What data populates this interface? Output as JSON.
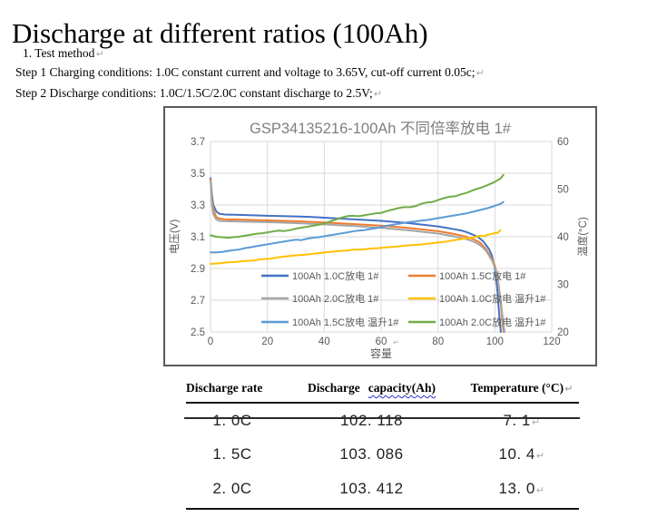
{
  "page": {
    "title": "Discharge at different ratios (100Ah)",
    "intro": "1. Test method",
    "step1": "Step 1 Charging conditions: 1.0C constant current and voltage to 3.65V, cut-off current 0.05c;",
    "step2": "Step 2 Discharge conditions: 1.0C/1.5C/2.0C constant discharge to 2.5V;",
    "paragraph_mark": "↵"
  },
  "chart_data": {
    "type": "line",
    "title": "GSP34135216-100Ah 不同倍率放电 1#",
    "xlabel": "容量",
    "ylabel_left": "电压(V)",
    "ylabel_right": "温度(°C)",
    "x_axis": {
      "min": 0,
      "max": 120,
      "ticks": [
        0,
        20,
        40,
        60,
        80,
        100,
        120
      ]
    },
    "y_left": {
      "min": 2.5,
      "max": 3.7,
      "ticks": [
        3.7,
        3.5,
        3.3,
        3.1,
        2.9,
        2.7,
        2.5
      ]
    },
    "y_right": {
      "min": 20,
      "max": 60,
      "ticks": [
        60,
        50,
        40,
        30,
        20
      ]
    },
    "grid": true,
    "legend_position": "inside-bottom-two-columns",
    "grid_color": "#d9d9d9",
    "title_color": "#7f7f7f",
    "tick_color": "#595959",
    "series": [
      {
        "name": "100Ah 1.0C放电 1#",
        "color": "#4472C4",
        "axis": "left",
        "points": [
          [
            0,
            3.47
          ],
          [
            0.5,
            3.36
          ],
          [
            1,
            3.3
          ],
          [
            2,
            3.26
          ],
          [
            3,
            3.245
          ],
          [
            5,
            3.24
          ],
          [
            10,
            3.238
          ],
          [
            15,
            3.235
          ],
          [
            20,
            3.232
          ],
          [
            25,
            3.23
          ],
          [
            30,
            3.228
          ],
          [
            35,
            3.225
          ],
          [
            40,
            3.22
          ],
          [
            45,
            3.215
          ],
          [
            50,
            3.21
          ],
          [
            55,
            3.205
          ],
          [
            60,
            3.2
          ],
          [
            65,
            3.193
          ],
          [
            70,
            3.185
          ],
          [
            75,
            3.175
          ],
          [
            80,
            3.165
          ],
          [
            85,
            3.15
          ],
          [
            88,
            3.14
          ],
          [
            90,
            3.13
          ],
          [
            92,
            3.115
          ],
          [
            94,
            3.1
          ],
          [
            96,
            3.07
          ],
          [
            98,
            3.02
          ],
          [
            99,
            2.98
          ],
          [
            100,
            2.9
          ],
          [
            100.8,
            2.78
          ],
          [
            101.5,
            2.62
          ],
          [
            102.1,
            2.5
          ]
        ]
      },
      {
        "name": "100Ah 1.5C放电 1#",
        "color": "#ED7D31",
        "axis": "left",
        "points": [
          [
            0,
            3.46
          ],
          [
            0.5,
            3.33
          ],
          [
            1,
            3.27
          ],
          [
            2,
            3.225
          ],
          [
            3,
            3.215
          ],
          [
            5,
            3.21
          ],
          [
            10,
            3.208
          ],
          [
            20,
            3.203
          ],
          [
            30,
            3.198
          ],
          [
            40,
            3.19
          ],
          [
            50,
            3.18
          ],
          [
            60,
            3.17
          ],
          [
            70,
            3.155
          ],
          [
            80,
            3.135
          ],
          [
            85,
            3.12
          ],
          [
            90,
            3.1
          ],
          [
            93,
            3.08
          ],
          [
            95,
            3.06
          ],
          [
            97,
            3.02
          ],
          [
            99,
            2.96
          ],
          [
            100,
            2.92
          ],
          [
            101,
            2.84
          ],
          [
            102,
            2.7
          ],
          [
            102.7,
            2.55
          ],
          [
            103.1,
            2.5
          ]
        ]
      },
      {
        "name": "100Ah 2.0C放电 1#",
        "color": "#A5A5A5",
        "axis": "left",
        "points": [
          [
            0,
            3.45
          ],
          [
            0.5,
            3.3
          ],
          [
            1,
            3.24
          ],
          [
            2,
            3.21
          ],
          [
            3,
            3.2
          ],
          [
            5,
            3.198
          ],
          [
            10,
            3.196
          ],
          [
            20,
            3.192
          ],
          [
            30,
            3.186
          ],
          [
            40,
            3.178
          ],
          [
            50,
            3.168
          ],
          [
            60,
            3.156
          ],
          [
            70,
            3.14
          ],
          [
            80,
            3.12
          ],
          [
            85,
            3.105
          ],
          [
            90,
            3.085
          ],
          [
            93,
            3.065
          ],
          [
            95,
            3.045
          ],
          [
            97,
            3.01
          ],
          [
            99,
            2.95
          ],
          [
            100,
            2.91
          ],
          [
            101,
            2.83
          ],
          [
            102,
            2.71
          ],
          [
            103,
            2.55
          ],
          [
            103.4,
            2.5
          ]
        ]
      },
      {
        "name": "100Ah 1.0C放电 温升1#",
        "color": "#FFC000",
        "axis": "right",
        "points": [
          [
            0,
            34.3
          ],
          [
            3,
            34.4
          ],
          [
            6,
            34.6
          ],
          [
            9,
            34.7
          ],
          [
            12,
            34.9
          ],
          [
            15,
            35.0
          ],
          [
            18,
            35.3
          ],
          [
            21,
            35.4
          ],
          [
            24,
            35.7
          ],
          [
            27,
            35.9
          ],
          [
            30,
            36.1
          ],
          [
            33,
            36.2
          ],
          [
            36,
            36.4
          ],
          [
            39,
            36.6
          ],
          [
            42,
            36.8
          ],
          [
            45,
            37.0
          ],
          [
            48,
            37.1
          ],
          [
            50,
            37.3
          ],
          [
            53,
            37.3
          ],
          [
            56,
            37.5
          ],
          [
            59,
            37.6
          ],
          [
            62,
            37.8
          ],
          [
            65,
            37.9
          ],
          [
            68,
            38.1
          ],
          [
            70,
            38.2
          ],
          [
            73,
            38.3
          ],
          [
            76,
            38.5
          ],
          [
            79,
            38.7
          ],
          [
            82,
            38.9
          ],
          [
            85,
            39.2
          ],
          [
            88,
            39.5
          ],
          [
            90,
            39.7
          ],
          [
            92,
            39.8
          ],
          [
            94,
            40.1
          ],
          [
            95,
            40.2
          ],
          [
            96,
            40.1
          ],
          [
            97,
            40.3
          ],
          [
            98,
            40.5
          ],
          [
            99,
            40.6
          ],
          [
            100,
            40.8
          ],
          [
            101,
            40.8
          ],
          [
            101.5,
            41.1
          ],
          [
            102,
            41.4
          ]
        ]
      },
      {
        "name": "100Ah 1.5C放电 温升1#",
        "color": "#5B9BD5",
        "axis": "right",
        "points": [
          [
            0,
            36.7
          ],
          [
            2,
            36.7
          ],
          [
            4,
            36.8
          ],
          [
            6,
            37.0
          ],
          [
            8,
            37.2
          ],
          [
            10,
            37.3
          ],
          [
            12,
            37.6
          ],
          [
            14,
            37.8
          ],
          [
            16,
            38.0
          ],
          [
            18,
            38.2
          ],
          [
            20,
            38.4
          ],
          [
            22,
            38.6
          ],
          [
            24,
            38.8
          ],
          [
            26,
            39.0
          ],
          [
            28,
            39.2
          ],
          [
            30,
            39.4
          ],
          [
            32,
            39.3
          ],
          [
            34,
            39.6
          ],
          [
            36,
            39.8
          ],
          [
            38,
            39.9
          ],
          [
            40,
            40.1
          ],
          [
            42,
            40.3
          ],
          [
            44,
            40.5
          ],
          [
            46,
            40.7
          ],
          [
            48,
            40.9
          ],
          [
            50,
            41.1
          ],
          [
            52,
            41.3
          ],
          [
            54,
            41.4
          ],
          [
            56,
            41.6
          ],
          [
            58,
            41.8
          ],
          [
            60,
            42.0
          ],
          [
            62,
            42.3
          ],
          [
            64,
            42.5
          ],
          [
            66,
            42.7
          ],
          [
            68,
            42.9
          ],
          [
            70,
            43.1
          ],
          [
            72,
            43.2
          ],
          [
            74,
            43.4
          ],
          [
            76,
            43.5
          ],
          [
            78,
            43.7
          ],
          [
            80,
            43.9
          ],
          [
            82,
            44.1
          ],
          [
            84,
            44.3
          ],
          [
            86,
            44.5
          ],
          [
            88,
            44.7
          ],
          [
            90,
            44.9
          ],
          [
            92,
            45.2
          ],
          [
            94,
            45.5
          ],
          [
            96,
            45.8
          ],
          [
            98,
            46.1
          ],
          [
            100,
            46.5
          ],
          [
            101,
            46.7
          ],
          [
            102,
            46.9
          ],
          [
            103,
            47.3
          ]
        ]
      },
      {
        "name": "100Ah 2.0C放电 温升1#",
        "color": "#70AD47",
        "axis": "right",
        "points": [
          [
            0,
            40.3
          ],
          [
            2,
            40.0
          ],
          [
            4,
            39.9
          ],
          [
            6,
            39.8
          ],
          [
            8,
            39.9
          ],
          [
            10,
            40.0
          ],
          [
            12,
            40.2
          ],
          [
            14,
            40.4
          ],
          [
            16,
            40.6
          ],
          [
            18,
            40.7
          ],
          [
            20,
            40.9
          ],
          [
            22,
            41.1
          ],
          [
            24,
            41.3
          ],
          [
            26,
            41.2
          ],
          [
            28,
            41.4
          ],
          [
            30,
            41.7
          ],
          [
            32,
            41.9
          ],
          [
            34,
            42.1
          ],
          [
            36,
            42.3
          ],
          [
            38,
            42.5
          ],
          [
            40,
            42.8
          ],
          [
            42,
            43.2
          ],
          [
            44,
            43.6
          ],
          [
            46,
            44.0
          ],
          [
            48,
            44.3
          ],
          [
            50,
            44.4
          ],
          [
            52,
            44.3
          ],
          [
            54,
            44.5
          ],
          [
            56,
            44.7
          ],
          [
            58,
            44.9
          ],
          [
            60,
            45.0
          ],
          [
            62,
            45.4
          ],
          [
            64,
            45.7
          ],
          [
            66,
            46.0
          ],
          [
            68,
            46.2
          ],
          [
            70,
            46.2
          ],
          [
            72,
            46.4
          ],
          [
            74,
            46.9
          ],
          [
            76,
            47.2
          ],
          [
            78,
            47.3
          ],
          [
            80,
            47.7
          ],
          [
            82,
            48.1
          ],
          [
            84,
            48.4
          ],
          [
            86,
            48.5
          ],
          [
            88,
            48.9
          ],
          [
            90,
            49.2
          ],
          [
            92,
            49.7
          ],
          [
            94,
            50.1
          ],
          [
            96,
            50.5
          ],
          [
            98,
            51.0
          ],
          [
            100,
            51.5
          ],
          [
            101,
            51.9
          ],
          [
            102,
            52.2
          ],
          [
            103,
            53.0
          ]
        ]
      }
    ],
    "x_tick_mark": "↵"
  },
  "table": {
    "header": {
      "col1": "Discharge rate",
      "col2_word": "Discharge",
      "col2_wavy": "capacity(Ah)",
      "col3": "Temperature (°C)"
    },
    "rows": [
      {
        "rate": "1. 0C",
        "capacity": "102. 118",
        "temp": "7. 1"
      },
      {
        "rate": "1. 5C",
        "capacity": "103. 086",
        "temp": "10. 4"
      },
      {
        "rate": "2. 0C",
        "capacity": "103. 412",
        "temp": "13. 0"
      }
    ]
  }
}
